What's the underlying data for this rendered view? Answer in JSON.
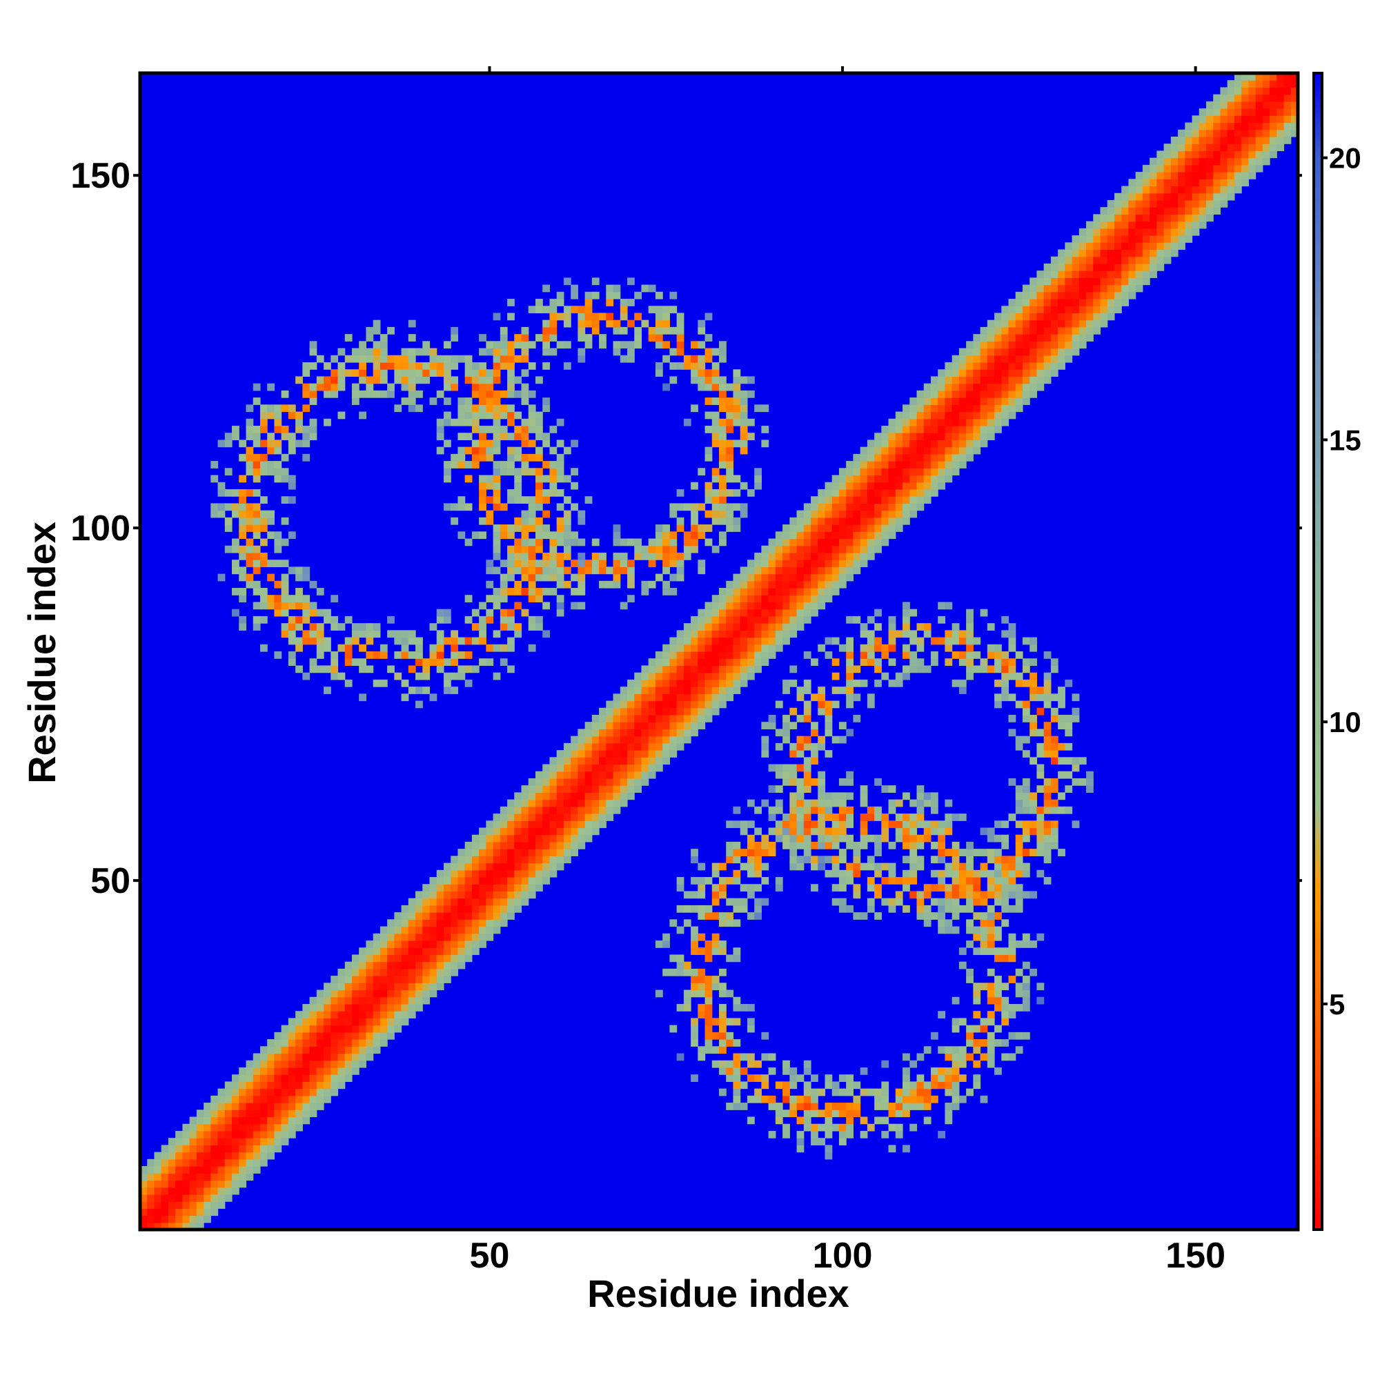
{
  "chart_data": {
    "type": "heatmap",
    "title": "",
    "xlabel": "Residue index",
    "ylabel": "Residue index",
    "xlim": [
      1,
      164
    ],
    "ylim": [
      1,
      164
    ],
    "x_ticks": [
      50,
      100,
      150
    ],
    "y_ticks": [
      50,
      100,
      150
    ],
    "x_tick_labels": [
      "50",
      "100",
      "150"
    ],
    "y_tick_labels": [
      "50",
      "100",
      "150"
    ],
    "n_residues": 164,
    "colorbar": {
      "ticks": [
        5,
        10,
        15,
        20
      ],
      "tick_labels": [
        "5",
        "10",
        "15",
        "20"
      ],
      "range": [
        1,
        21.5
      ],
      "stops": [
        {
          "value": 1,
          "color": "#ff0000"
        },
        {
          "value": 4,
          "color": "#ff5500"
        },
        {
          "value": 7,
          "color": "#ff9900"
        },
        {
          "value": 8.5,
          "color": "#9ec190"
        },
        {
          "value": 12,
          "color": "#8fb59a"
        },
        {
          "value": 17,
          "color": "#6f8fbe"
        },
        {
          "value": 20,
          "color": "#3a5fcf"
        },
        {
          "value": 21.5,
          "color": "#0000ee"
        }
      ]
    },
    "background_value": 21.5,
    "background_color": "#0000ee",
    "diagonal_band": {
      "center_value": 1,
      "edge_value": 12,
      "half_width": 8
    },
    "contact_lobes": [
      {
        "center_i": 37,
        "center_j": 102,
        "radius": 21,
        "band_width": 6.5,
        "tail_to": 62
      },
      {
        "center_i": 101,
        "center_j": 38,
        "radius": 21,
        "band_width": 6.5,
        "tail_to": 62
      },
      {
        "center_i": 112,
        "center_j": 66,
        "radius": 18,
        "band_width": 6,
        "tail_to": 118
      },
      {
        "center_i": 66,
        "center_j": 112,
        "radius": 18,
        "band_width": 6,
        "tail_to": 118
      }
    ]
  }
}
